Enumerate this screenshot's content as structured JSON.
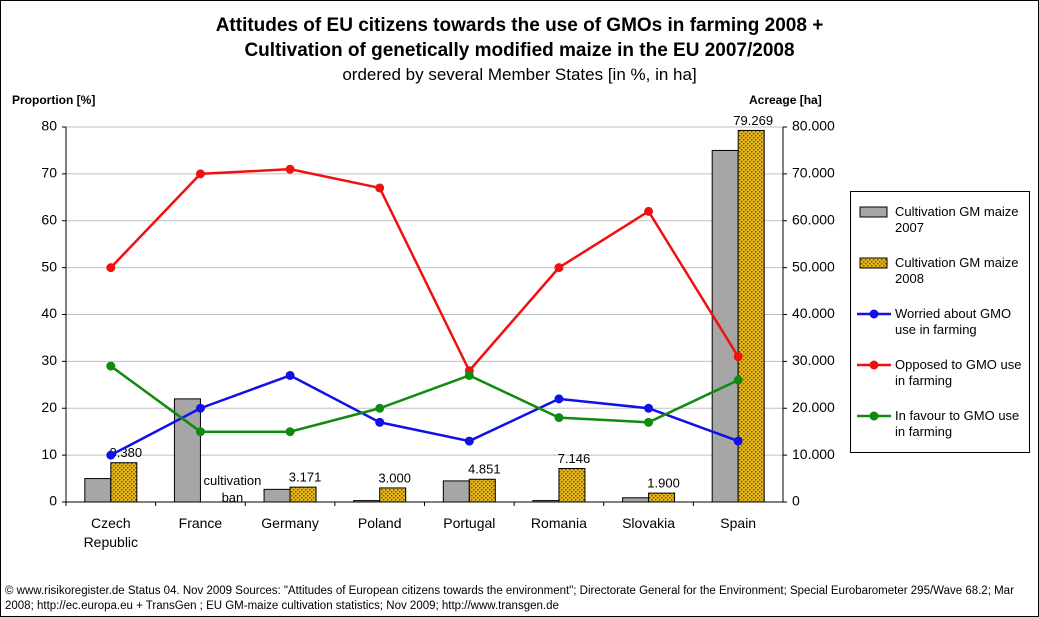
{
  "chart_data": {
    "type": "combo",
    "title": [
      "Attitudes of EU citizens towards the use of GMOs in farming 2008 +",
      "Cultivation of genetically modified maize in the EU 2007/2008"
    ],
    "subtitle": "ordered by several Member States [in %, in ha]",
    "y_label": "Proportion [%]",
    "y2_label": "Acreage [ha]",
    "categories": [
      "Czech Republic",
      "France",
      "Germany",
      "Poland",
      "Portugal",
      "Romania",
      "Slovakia",
      "Spain"
    ],
    "ylim": [
      0,
      80
    ],
    "yticks": [
      0,
      10,
      20,
      30,
      40,
      50,
      60,
      70,
      80
    ],
    "y2lim": [
      0,
      80000
    ],
    "y2ticks": [
      0,
      {
        "value": 10000,
        "label": "10.000"
      },
      {
        "value": 20000,
        "label": "20.000"
      },
      {
        "value": 30000,
        "label": "30.000"
      },
      {
        "value": 40000,
        "label": "40.000"
      },
      {
        "value": 50000,
        "label": "50.000"
      },
      {
        "value": 60000,
        "label": "60.000"
      },
      {
        "value": 70000,
        "label": "70.000"
      },
      {
        "value": 80000,
        "label": "80.000"
      }
    ],
    "grid": true,
    "series": [
      {
        "name": "Cultivation GM maize 2007",
        "type": "bar",
        "axis": "y2",
        "color": "#a6a6a6",
        "values": [
          5000,
          22000,
          2700,
          300,
          4500,
          300,
          900,
          75000
        ]
      },
      {
        "name": "Cultivation GM maize 2008",
        "type": "bar",
        "axis": "y2",
        "color": "#d9a80f",
        "pattern": true,
        "values": [
          8380,
          null,
          3171,
          3000,
          4851,
          7146,
          1900,
          79269
        ],
        "value_labels": [
          "8.380",
          null,
          "3.171",
          "3.000",
          "4.851",
          "7.146",
          "1.900",
          "79.269"
        ]
      },
      {
        "name": "Worried about GMO use in farming",
        "type": "line",
        "color": "#1010e8",
        "values": [
          10,
          20,
          27,
          17,
          13,
          22,
          20,
          13
        ]
      },
      {
        "name": "Opposed to GMO use in farming",
        "type": "line",
        "color": "#f01010",
        "values": [
          50,
          70,
          71,
          67,
          28,
          50,
          62,
          31
        ]
      },
      {
        "name": "In favour to GMO use in farming",
        "type": "line",
        "color": "#108a10",
        "values": [
          29,
          15,
          15,
          20,
          27,
          18,
          17,
          26
        ]
      }
    ],
    "annotations": [
      "cultivation ban"
    ],
    "source": "© www.risikoregister.de     Status 04. Nov 2009   Sources: \"Attitudes of European citizens towards the environment\"; Directorate General for the Environment; Special Eurobarometer 295/Wave 68.2; Mar 2008; http://ec.europa.eu + TransGen ; EU GM-maize cultivation statistics; Nov 2009; http://www.transgen.de"
  }
}
